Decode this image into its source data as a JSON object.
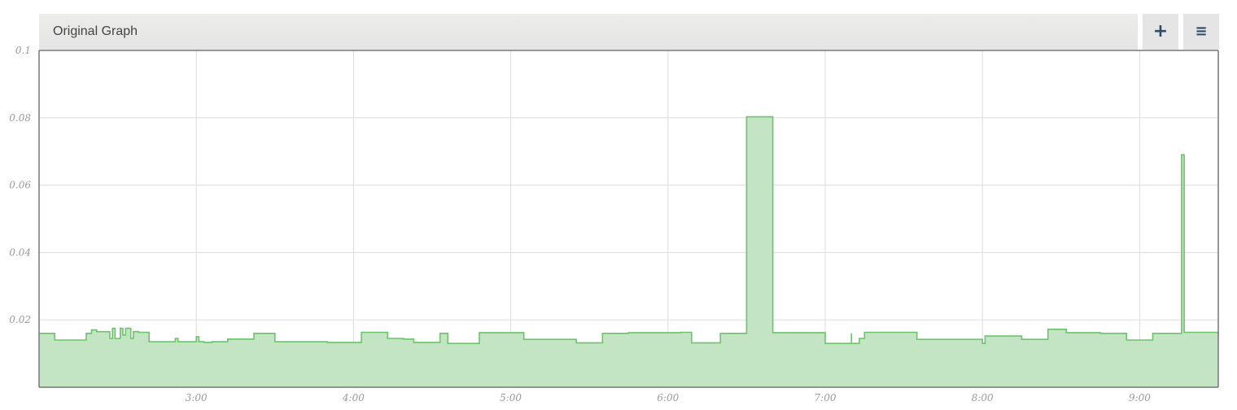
{
  "panel": {
    "title": "Original Graph",
    "add_label": "+",
    "menu_label": "≡"
  },
  "chart_data": {
    "type": "area",
    "title": "Original Graph",
    "xlabel": "",
    "ylabel": "",
    "x_ticks": [
      "3:00",
      "4:00",
      "5:00",
      "6:00",
      "7:00",
      "8:00",
      "9:00"
    ],
    "y_ticks": [
      "0.02",
      "0.04",
      "0.06",
      "0.08",
      "0.1"
    ],
    "xlim": [
      "2:00",
      "9:30"
    ],
    "ylim": [
      0,
      0.1
    ],
    "grid": true,
    "colors": {
      "fill": "#c3e5c3",
      "line": "#6cc46c",
      "grid": "#dddddd",
      "axis": "#777777"
    },
    "series": [
      {
        "x": [
          "2:00",
          "2:06",
          "2:18",
          "2:20",
          "2:22",
          "2:24",
          "2:27",
          "2:28",
          "2:29",
          "2:31",
          "2:32",
          "2:33",
          "2:35",
          "2:36",
          "2:38",
          "2:41",
          "2:42",
          "2:52",
          "2:53",
          "2:55",
          "3:00",
          "3:01",
          "3:02",
          "3:03",
          "3:06",
          "3:12",
          "3:22",
          "3:30",
          "3:40",
          "3:50",
          "4:00",
          "4:03",
          "4:13",
          "4:19",
          "4:23",
          "4:33",
          "4:36",
          "4:48",
          "4:53",
          "5:05",
          "5:05",
          "5:25",
          "5:35",
          "5:45",
          "6:05",
          "6:09",
          "6:20",
          "6:30",
          "6:40",
          "6:48",
          "7:00",
          "7:10",
          "7:10",
          "7:13",
          "7:15",
          "7:25",
          "7:35",
          "7:45",
          "7:50",
          "8:00",
          "8:01",
          "8:05",
          "8:15",
          "8:25",
          "8:32",
          "8:35",
          "8:45",
          "8:55",
          "9:00",
          "9:05",
          "9:08",
          "9:16",
          "9:17",
          "9:18",
          "9:28",
          "9:30"
        ],
        "y": [
          0.016,
          0.014,
          0.016,
          0.017,
          0.0165,
          0.0165,
          0.0145,
          0.0175,
          0.0145,
          0.0175,
          0.0155,
          0.0175,
          0.0145,
          0.0165,
          0.0163,
          0.0163,
          0.0135,
          0.0145,
          0.0135,
          0.0135,
          0.015,
          0.0135,
          0.0135,
          0.0133,
          0.0135,
          0.0143,
          0.016,
          0.0135,
          0.0135,
          0.0133,
          0.0133,
          0.0163,
          0.0145,
          0.0143,
          0.0133,
          0.016,
          0.013,
          0.0162,
          0.0162,
          0.0162,
          0.0142,
          0.0132,
          0.016,
          0.0162,
          0.0163,
          0.0132,
          0.016,
          0.0803,
          0.0162,
          0.0162,
          0.013,
          0.016,
          0.013,
          0.0145,
          0.0163,
          0.0163,
          0.0142,
          0.0142,
          0.0142,
          0.013,
          0.0152,
          0.0152,
          0.0142,
          0.0172,
          0.0162,
          0.0162,
          0.016,
          0.014,
          0.014,
          0.016,
          0.016,
          0.069,
          0.0163,
          0.0163,
          0.0163,
          0.0155
        ]
      }
    ]
  }
}
